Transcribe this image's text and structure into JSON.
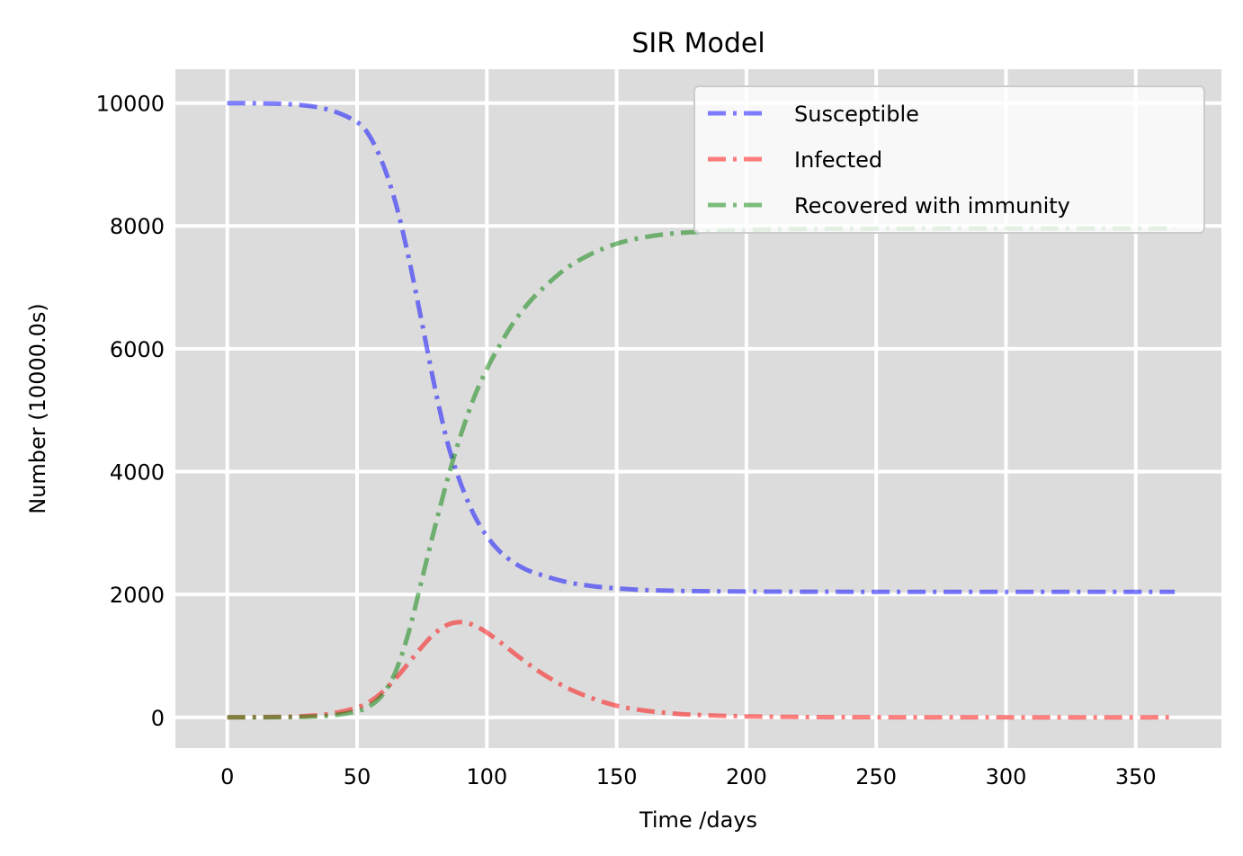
{
  "chart_data": {
    "type": "line",
    "title": "SIR Model",
    "xlabel": "Time /days",
    "ylabel": "Number (10000.0s)",
    "xlim": [
      -20,
      383
    ],
    "ylim": [
      -500,
      10550
    ],
    "xticks": [
      0,
      50,
      100,
      150,
      200,
      250,
      300,
      350
    ],
    "yticks": [
      0,
      2000,
      4000,
      6000,
      8000,
      10000
    ],
    "grid": true,
    "legend_position": "top-right",
    "x": [
      0,
      10,
      20,
      30,
      40,
      50,
      55,
      60,
      65,
      70,
      75,
      80,
      85,
      90,
      95,
      100,
      105,
      110,
      115,
      120,
      130,
      140,
      150,
      160,
      170,
      180,
      200,
      225,
      250,
      300,
      365
    ],
    "series": [
      {
        "name": "Susceptible",
        "color": "#0000ff",
        "values": [
          9998,
          9996,
          9988,
          9960,
          9880,
          9690,
          9450,
          9000,
          8350,
          7460,
          6420,
          5360,
          4450,
          3800,
          3300,
          2950,
          2700,
          2530,
          2410,
          2330,
          2210,
          2140,
          2100,
          2075,
          2062,
          2055,
          2048,
          2045,
          2043,
          2042,
          2042
        ]
      },
      {
        "name": "Infected",
        "color": "#ff0000",
        "values": [
          1,
          3,
          8,
          22,
          60,
          160,
          260,
          420,
          640,
          890,
          1150,
          1370,
          1510,
          1550,
          1500,
          1380,
          1230,
          1060,
          900,
          750,
          500,
          320,
          190,
          115,
          70,
          42,
          16,
          5,
          2,
          0,
          0
        ]
      },
      {
        "name": "Recovered with immunity",
        "color": "#008000",
        "values": [
          0,
          1,
          3,
          10,
          30,
          100,
          190,
          380,
          760,
          1400,
          2250,
          3100,
          3900,
          4600,
          5200,
          5670,
          6060,
          6410,
          6690,
          6920,
          7290,
          7540,
          7710,
          7810,
          7870,
          7900,
          7935,
          7950,
          7955,
          7958,
          7958
        ]
      }
    ]
  }
}
